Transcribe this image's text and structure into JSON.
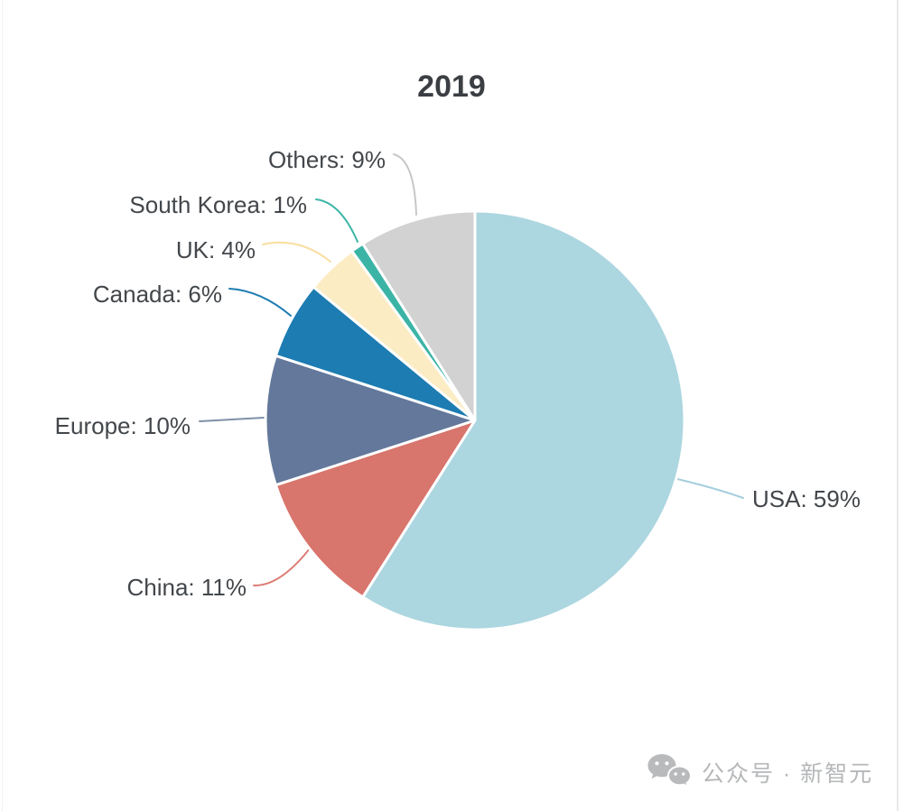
{
  "title": "2019",
  "watermark": {
    "icon": "wechat-icon",
    "text": "公众号 · 新智元"
  },
  "chart_data": {
    "type": "pie",
    "title": "2019",
    "categories": [
      "USA",
      "China",
      "Europe",
      "Canada",
      "UK",
      "South Korea",
      "Others"
    ],
    "values": [
      59,
      11,
      10,
      6,
      4,
      1,
      9
    ],
    "unit": "%",
    "labels": [
      "USA: 59%",
      "China: 11%",
      "Europe: 10%",
      "Canada: 6%",
      "UK: 4%",
      "South Korea: 1%",
      "Others: 9%"
    ],
    "colors": [
      "#acd6e0",
      "#d8756c",
      "#64789b",
      "#1d7cb2",
      "#fcecc4",
      "#3bb4a6",
      "#d2d2d2"
    ],
    "leader_colors": [
      "#a5cedd",
      "#dc7d75",
      "#7e90a9",
      "#1d7cb2",
      "#f9dfa2",
      "#3cb5a6",
      "#c7c7c7"
    ],
    "start_angle_deg": 0,
    "direction": "clockwise",
    "slice_border_color": "#ffffff",
    "label_text_color": "#43474b",
    "title_color": "#3b3e42",
    "legend_position": "none",
    "labels_outside": true
  }
}
